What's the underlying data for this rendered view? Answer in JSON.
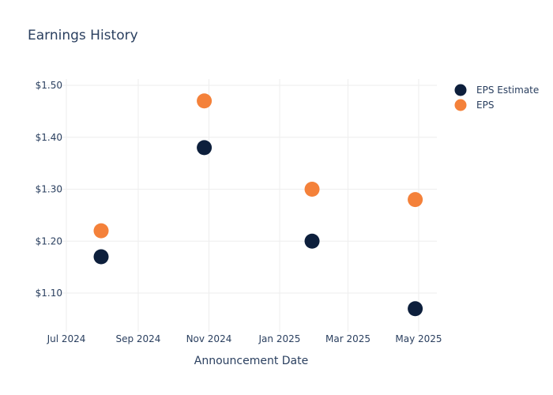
{
  "chart_data": {
    "type": "scatter",
    "title": "Earnings History",
    "xlabel": "Announcement Date",
    "ylabel": "",
    "x_ticks": [
      {
        "date": "2024-07-01",
        "label": "Jul 2024"
      },
      {
        "date": "2024-09-01",
        "label": "Sep 2024"
      },
      {
        "date": "2024-11-01",
        "label": "Nov 2024"
      },
      {
        "date": "2025-01-01",
        "label": "Jan 2025"
      },
      {
        "date": "2025-03-01",
        "label": "Mar 2025"
      },
      {
        "date": "2025-05-01",
        "label": "May 2025"
      }
    ],
    "y_ticks": [
      {
        "value": 1.1,
        "label": "$1.10"
      },
      {
        "value": 1.2,
        "label": "$1.20"
      },
      {
        "value": 1.3,
        "label": "$1.30"
      },
      {
        "value": 1.4,
        "label": "$1.40"
      },
      {
        "value": 1.5,
        "label": "$1.50"
      }
    ],
    "xlim": [
      "2024-07-01",
      "2025-05-01"
    ],
    "ylim": [
      1.1,
      1.5
    ],
    "grid": true,
    "legend_position": "top-right",
    "series": [
      {
        "name": "EPS Estimate",
        "color": "#0d1f3c",
        "points": [
          {
            "x": "2024-07-31",
            "y": 1.17
          },
          {
            "x": "2024-10-28",
            "y": 1.38
          },
          {
            "x": "2025-01-29",
            "y": 1.2
          },
          {
            "x": "2025-04-28",
            "y": 1.07
          }
        ]
      },
      {
        "name": "EPS",
        "color": "#f4813a",
        "points": [
          {
            "x": "2024-07-31",
            "y": 1.22
          },
          {
            "x": "2024-10-28",
            "y": 1.47
          },
          {
            "x": "2025-01-29",
            "y": 1.3
          },
          {
            "x": "2025-04-28",
            "y": 1.28
          }
        ]
      }
    ]
  }
}
